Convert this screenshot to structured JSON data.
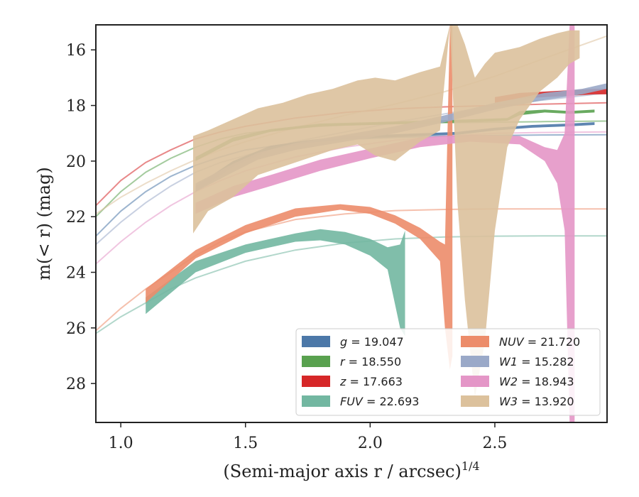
{
  "chart_data": {
    "type": "area",
    "xlabel": "(Semi-major axis r / arcsec)",
    "xlabel_sup": "1/4",
    "ylabel": "m(< r) (mag)",
    "xlim": [
      0.9,
      2.95
    ],
    "ylim": [
      29.4,
      15.1
    ],
    "y_inverted": true,
    "grid": false,
    "legend_placement": "lower-right",
    "x_ticks": [
      1.0,
      1.5,
      2.0,
      2.5
    ],
    "x_tick_labels": [
      "1.0",
      "1.5",
      "2.0",
      "2.5"
    ],
    "y_ticks": [
      16,
      18,
      20,
      22,
      24,
      26,
      28
    ],
    "y_tick_labels": [
      "16",
      "18",
      "20",
      "22",
      "24",
      "26",
      "28"
    ],
    "series": [
      {
        "name": "g = 19.047",
        "color": "#4c78a8",
        "band_x": [
          1.3,
          1.45,
          1.6,
          1.75,
          1.9,
          2.05,
          2.2,
          2.35,
          2.5,
          2.65,
          2.8,
          2.9
        ],
        "band_low": [
          21.1,
          20.2,
          19.6,
          19.35,
          19.2,
          19.15,
          19.1,
          19.05,
          18.9,
          18.8,
          18.75,
          18.7
        ],
        "band_high": [
          20.9,
          20.0,
          19.45,
          19.25,
          19.1,
          19.05,
          19.0,
          18.95,
          18.8,
          18.7,
          18.65,
          18.6
        ],
        "model_x": [
          0.9,
          1.0,
          1.1,
          1.2,
          1.3,
          1.4,
          1.5,
          1.7,
          1.9,
          2.1,
          2.3,
          2.5,
          2.7,
          2.95
        ],
        "model_y": [
          22.7,
          21.8,
          21.1,
          20.55,
          20.15,
          19.85,
          19.6,
          19.35,
          19.22,
          19.15,
          19.1,
          19.08,
          19.06,
          19.05
        ]
      },
      {
        "name": "r = 18.550",
        "color": "#59a14f",
        "band_x": [
          1.3,
          1.45,
          1.6,
          1.8,
          2.0,
          2.2,
          2.4,
          2.55,
          2.6,
          2.7,
          2.8,
          2.9
        ],
        "band_low": [
          20.0,
          19.3,
          18.95,
          18.75,
          18.7,
          18.65,
          18.6,
          18.55,
          18.35,
          18.25,
          18.3,
          18.25
        ],
        "band_high": [
          19.85,
          19.15,
          18.85,
          18.65,
          18.6,
          18.55,
          18.5,
          18.45,
          18.2,
          18.15,
          18.2,
          18.15
        ],
        "model_x": [
          0.9,
          1.0,
          1.1,
          1.2,
          1.3,
          1.4,
          1.5,
          1.7,
          1.9,
          2.1,
          2.3,
          2.5,
          2.7,
          2.95
        ],
        "model_y": [
          22.0,
          21.1,
          20.4,
          19.9,
          19.5,
          19.2,
          19.0,
          18.8,
          18.7,
          18.65,
          18.62,
          18.6,
          18.58,
          18.56
        ]
      },
      {
        "name": "z = 17.663",
        "color": "#d62728",
        "band_x": [
          2.5,
          2.6,
          2.7,
          2.8,
          2.9,
          2.95
        ],
        "band_low": [
          17.9,
          17.75,
          17.7,
          17.65,
          17.6,
          17.6
        ],
        "band_high": [
          17.7,
          17.55,
          17.5,
          17.45,
          17.4,
          17.4
        ],
        "model_x": [
          0.9,
          1.0,
          1.1,
          1.2,
          1.3,
          1.4,
          1.5,
          1.7,
          1.9,
          2.1,
          2.3,
          2.5,
          2.7,
          2.95
        ],
        "model_y": [
          21.6,
          20.7,
          20.05,
          19.6,
          19.2,
          18.95,
          18.75,
          18.45,
          18.25,
          18.12,
          18.05,
          18.0,
          17.95,
          17.9
        ]
      },
      {
        "name": "FUV = 22.693",
        "color": "#72b7a1",
        "band_x": [
          1.1,
          1.3,
          1.5,
          1.7,
          1.8,
          1.9,
          2.0,
          2.07,
          2.12,
          2.14
        ],
        "band_low": [
          25.5,
          24.0,
          23.3,
          22.9,
          22.85,
          23.0,
          23.4,
          23.9,
          26.0,
          26.3
        ],
        "band_high": [
          24.9,
          23.6,
          23.0,
          22.6,
          22.45,
          22.55,
          22.8,
          23.1,
          23.0,
          22.5
        ],
        "model_x": [
          0.9,
          1.0,
          1.1,
          1.2,
          1.3,
          1.4,
          1.5,
          1.7,
          1.9,
          2.1,
          2.3,
          2.5,
          2.7,
          2.95
        ],
        "model_y": [
          26.2,
          25.6,
          25.1,
          24.6,
          24.2,
          23.9,
          23.6,
          23.2,
          22.95,
          22.8,
          22.73,
          22.7,
          22.69,
          22.69
        ]
      },
      {
        "name": "NUV = 21.720",
        "color": "#ec8c6a",
        "band_x": [
          1.1,
          1.3,
          1.5,
          1.7,
          1.88,
          2.0,
          2.1,
          2.2,
          2.28,
          2.3,
          2.32,
          2.33
        ],
        "band_low": [
          25.1,
          23.5,
          22.6,
          22.0,
          21.75,
          21.9,
          22.25,
          22.8,
          23.6,
          26.0,
          27.5,
          27.0
        ],
        "band_high": [
          24.6,
          23.2,
          22.3,
          21.7,
          21.55,
          21.65,
          21.95,
          22.4,
          22.9,
          23.0,
          15.1,
          15.1
        ],
        "model_x": [
          0.9,
          1.0,
          1.1,
          1.2,
          1.3,
          1.4,
          1.5,
          1.7,
          1.9,
          2.1,
          2.3,
          2.5,
          2.7,
          2.95
        ],
        "model_y": [
          26.1,
          25.3,
          24.6,
          24.0,
          23.4,
          22.9,
          22.55,
          22.1,
          21.9,
          21.78,
          21.74,
          21.72,
          21.72,
          21.72
        ]
      },
      {
        "name": "W1 = 15.282",
        "color": "#9aa9c8",
        "band_x": [
          1.3,
          1.45,
          1.55,
          1.7,
          1.9,
          2.1,
          2.3,
          2.5,
          2.7,
          2.85,
          2.95
        ],
        "band_low": [
          21.1,
          20.4,
          19.95,
          19.6,
          19.3,
          19.0,
          18.6,
          18.15,
          17.8,
          17.6,
          17.4
        ],
        "band_high": [
          20.8,
          20.1,
          19.7,
          19.35,
          19.05,
          18.75,
          18.35,
          17.9,
          17.55,
          17.4,
          17.2
        ],
        "model_x": [
          0.9,
          1.0,
          1.1,
          1.2,
          1.3,
          1.4,
          1.5,
          1.7,
          1.9,
          2.1,
          2.3,
          2.5,
          2.7,
          2.95
        ],
        "model_y": [
          23.0,
          22.2,
          21.5,
          20.9,
          20.4,
          20.05,
          19.8,
          19.3,
          18.95,
          18.6,
          18.3,
          18.0,
          17.8,
          17.55
        ]
      },
      {
        "name": "W2 = 18.943",
        "color": "#e496c7",
        "band_x": [
          1.3,
          1.45,
          1.6,
          1.8,
          2.0,
          2.2,
          2.4,
          2.6,
          2.7,
          2.75,
          2.78,
          2.8,
          2.82
        ],
        "band_low": [
          21.9,
          21.3,
          20.9,
          20.35,
          19.9,
          19.5,
          19.3,
          19.4,
          20.0,
          20.8,
          22.5,
          29.4,
          29.4
        ],
        "band_high": [
          21.5,
          20.9,
          20.5,
          19.95,
          19.55,
          19.15,
          19.05,
          19.1,
          19.5,
          19.6,
          19.0,
          15.1,
          15.1
        ],
        "model_x": [
          0.9,
          1.0,
          1.1,
          1.2,
          1.3,
          1.4,
          1.5,
          1.7,
          1.9,
          2.1,
          2.3,
          2.5,
          2.7,
          2.95
        ],
        "model_y": [
          23.7,
          22.9,
          22.2,
          21.6,
          21.1,
          20.7,
          20.35,
          19.85,
          19.5,
          19.25,
          19.1,
          19.0,
          18.97,
          18.95
        ]
      },
      {
        "name": "W3 = 13.920",
        "color": "#dcc19c",
        "band_x": [
          1.29,
          1.35,
          1.45,
          1.55,
          1.65,
          1.75,
          1.85,
          1.95,
          2.02,
          2.1,
          2.2,
          2.28,
          2.32,
          2.35,
          2.38,
          2.42,
          2.46,
          2.5,
          2.55,
          2.6,
          2.68,
          2.75,
          2.8,
          2.84
        ],
        "band_low": [
          22.6,
          21.8,
          21.3,
          20.5,
          20.2,
          19.9,
          19.6,
          19.4,
          19.8,
          20.0,
          19.3,
          18.9,
          15.1,
          21.5,
          25.0,
          28.5,
          26.5,
          22.5,
          19.5,
          18.5,
          17.5,
          17.0,
          16.5,
          16.3
        ],
        "band_high": [
          19.1,
          18.9,
          18.5,
          18.1,
          17.9,
          17.6,
          17.4,
          17.1,
          17.0,
          17.1,
          16.8,
          16.6,
          15.1,
          15.1,
          15.8,
          17.0,
          16.5,
          16.1,
          16.0,
          15.9,
          15.6,
          15.4,
          15.3,
          15.3
        ],
        "model_x": [
          0.9,
          1.0,
          1.1,
          1.2,
          1.3,
          1.4,
          1.5,
          1.7,
          1.9,
          2.1,
          2.3,
          2.5,
          2.7,
          2.95
        ],
        "model_y": [
          21.9,
          21.3,
          20.8,
          20.35,
          19.95,
          19.6,
          19.3,
          18.8,
          18.35,
          17.95,
          17.5,
          16.95,
          16.3,
          15.5
        ]
      }
    ],
    "legend": [
      {
        "label_math": "g",
        "value": "19.047",
        "color": "#4c78a8"
      },
      {
        "label_math": "r",
        "value": "18.550",
        "color": "#59a14f"
      },
      {
        "label_math": "z",
        "value": "17.663",
        "color": "#d62728"
      },
      {
        "label_math": "FUV",
        "value": "22.693",
        "color": "#72b7a1"
      },
      {
        "label_math": "NUV",
        "value": "21.720",
        "color": "#ec8c6a"
      },
      {
        "label_math": "W1",
        "value": "15.282",
        "color": "#9aa9c8"
      },
      {
        "label_math": "W2",
        "value": "18.943",
        "color": "#e496c7"
      },
      {
        "label_math": "W3",
        "value": "13.920",
        "color": "#dcc19c"
      }
    ]
  }
}
